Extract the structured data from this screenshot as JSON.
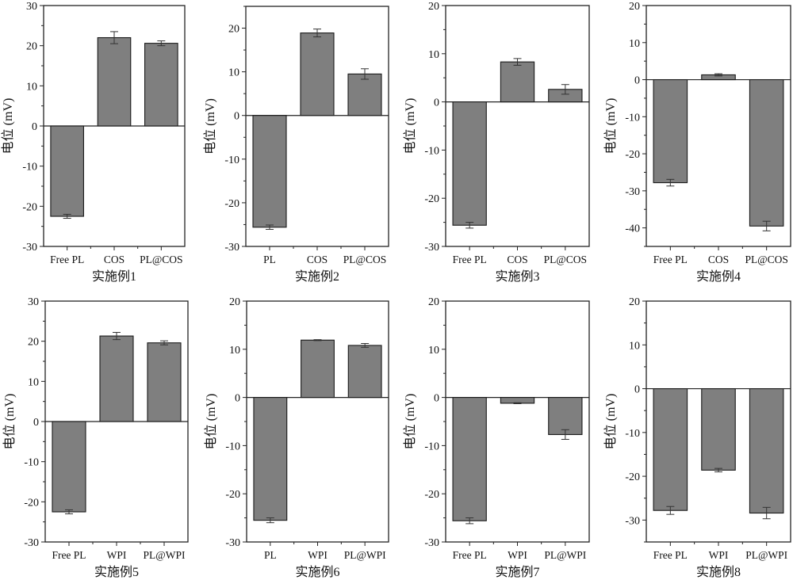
{
  "colors": {
    "bar_fill": "#7f7f7f",
    "bar_stroke": "#1a1a1a",
    "axis": "#222222",
    "error_bar": "#333333"
  },
  "chart_data": [
    {
      "type": "bar",
      "xlabel": "实施例1",
      "ylabel": "电位 (mV)",
      "categories": [
        "Free PL",
        "COS",
        "PL@COS"
      ],
      "values": [
        -22.5,
        22.0,
        20.6
      ],
      "errors": [
        0.5,
        1.5,
        0.6
      ],
      "ylim": [
        -30,
        30
      ],
      "yticks": [
        -30,
        -20,
        -10,
        0,
        10,
        20,
        30
      ]
    },
    {
      "type": "bar",
      "xlabel": "实施例2",
      "ylabel": "电位 (mV)",
      "categories": [
        "PL",
        "COS",
        "PL@COS"
      ],
      "values": [
        -25.6,
        18.9,
        9.5
      ],
      "errors": [
        0.5,
        0.9,
        1.2
      ],
      "ylim": [
        -30,
        25
      ],
      "yticks": [
        -30,
        -20,
        -10,
        0,
        10,
        20
      ]
    },
    {
      "type": "bar",
      "xlabel": "实施例3",
      "ylabel": "电位 (mV)",
      "categories": [
        "Free PL",
        "COS",
        "PL@COS"
      ],
      "values": [
        -25.6,
        8.3,
        2.6
      ],
      "errors": [
        0.6,
        0.7,
        1.0
      ],
      "ylim": [
        -30,
        20
      ],
      "yticks": [
        -30,
        -20,
        -10,
        0,
        10,
        20
      ]
    },
    {
      "type": "bar",
      "xlabel": "实施例4",
      "ylabel": "电位 (mV)",
      "categories": [
        "Free PL",
        "COS",
        "PL@COS"
      ],
      "values": [
        -27.8,
        1.3,
        -39.5
      ],
      "errors": [
        0.9,
        0.3,
        1.3
      ],
      "ylim": [
        -45,
        20
      ],
      "yticks": [
        -40,
        -30,
        -20,
        -10,
        0,
        10,
        20
      ]
    },
    {
      "type": "bar",
      "xlabel": "实施例5",
      "ylabel": "电位 (mV)",
      "categories": [
        "Free PL",
        "WPI",
        "PL@WPI"
      ],
      "values": [
        -22.5,
        21.3,
        19.6
      ],
      "errors": [
        0.5,
        0.9,
        0.5
      ],
      "ylim": [
        -30,
        30
      ],
      "yticks": [
        -30,
        -20,
        -10,
        0,
        10,
        20,
        30
      ]
    },
    {
      "type": "bar",
      "xlabel": "实施例6",
      "ylabel": "电位 (mV)",
      "categories": [
        "PL",
        "WPI",
        "PL@WPI"
      ],
      "values": [
        -25.5,
        11.9,
        10.8
      ],
      "errors": [
        0.5,
        0.1,
        0.4
      ],
      "ylim": [
        -30,
        20
      ],
      "yticks": [
        -30,
        -20,
        -10,
        0,
        10,
        20
      ]
    },
    {
      "type": "bar",
      "xlabel": "实施例7",
      "ylabel": "电位 (mV)",
      "categories": [
        "Free PL",
        "WPI",
        "PL@WPI"
      ],
      "values": [
        -25.6,
        -1.2,
        -7.7
      ],
      "errors": [
        0.6,
        0.1,
        1.0
      ],
      "ylim": [
        -30,
        20
      ],
      "yticks": [
        -30,
        -20,
        -10,
        0,
        10,
        20
      ]
    },
    {
      "type": "bar",
      "xlabel": "实施例8",
      "ylabel": "电位 (mV)",
      "categories": [
        "Free PL",
        "WPI",
        "PL@WPI"
      ],
      "values": [
        -27.8,
        -18.6,
        -28.4
      ],
      "errors": [
        0.9,
        0.4,
        1.3
      ],
      "ylim": [
        -35,
        20
      ],
      "yticks": [
        -30,
        -20,
        -10,
        0,
        10,
        20
      ]
    }
  ]
}
